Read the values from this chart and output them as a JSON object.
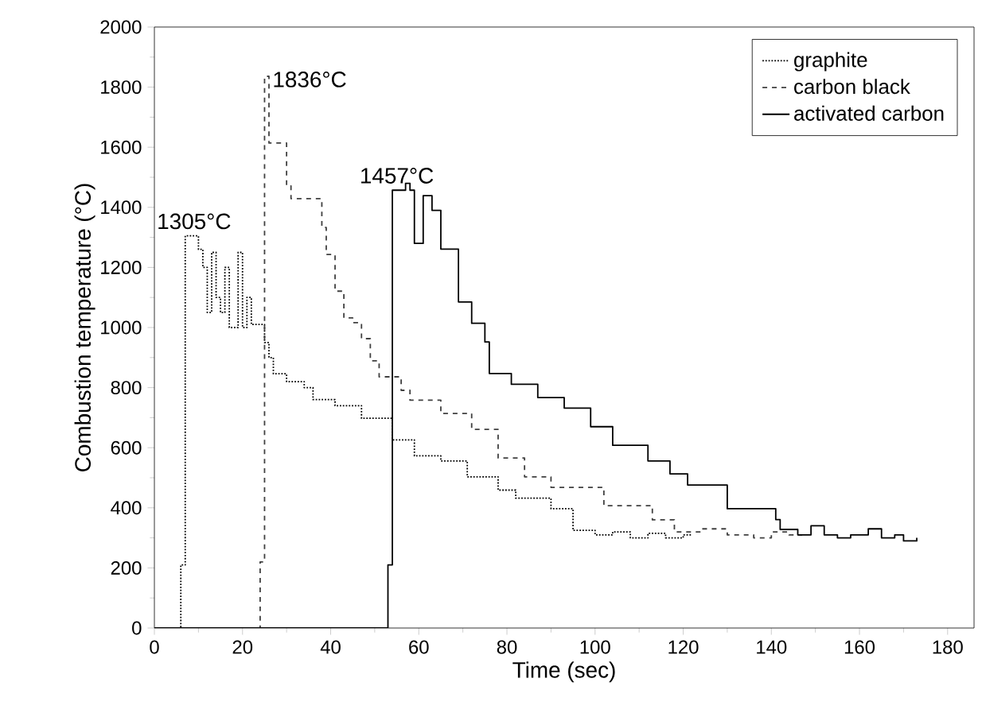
{
  "chart_data": {
    "type": "step",
    "xlabel": "Time (sec)",
    "ylabel": "Combustion temperature (°C)",
    "xlim": [
      0,
      186
    ],
    "xticks": [
      0,
      20,
      40,
      60,
      80,
      100,
      120,
      140,
      160,
      180
    ],
    "ylim": [
      0,
      2000
    ],
    "yticks": [
      0,
      200,
      400,
      600,
      800,
      1000,
      1200,
      1400,
      1600,
      1800,
      2000
    ],
    "grid": false,
    "legend": "top right",
    "marker": "none",
    "annotations": [
      {
        "text": "1305°C",
        "x": 9,
        "y": 1305
      },
      {
        "text": "1836°C",
        "x": 26,
        "y": 1836
      },
      {
        "text": "1457°C",
        "x": 55,
        "y": 1457
      }
    ],
    "series": [
      {
        "name": "graphite",
        "color": "#000000",
        "line_style": "dotted",
        "x": [
          5.5,
          6,
          7,
          10,
          11,
          12,
          13,
          14,
          15,
          16,
          17,
          19,
          20,
          21,
          22,
          25,
          26,
          27,
          30,
          34,
          36,
          41,
          47,
          54,
          59,
          65,
          71,
          78,
          82,
          90,
          95,
          100,
          104,
          108,
          112,
          116,
          120,
          122
        ],
        "values": [
          0,
          210,
          1305,
          1260,
          1200,
          1050,
          1250,
          1100,
          1050,
          1200,
          1000,
          1250,
          1000,
          1100,
          1010,
          950,
          900,
          846,
          820,
          800,
          760,
          740,
          698,
          626,
          573,
          556,
          503,
          459,
          432,
          397,
          325,
          310,
          320,
          300,
          315,
          300,
          310,
          310
        ]
      },
      {
        "name": "carbon black",
        "color": "#404040",
        "line_style": "dashed",
        "x": [
          23.5,
          24,
          25,
          26,
          29,
          30,
          31,
          34,
          38,
          39,
          41,
          43,
          45,
          47,
          49,
          51,
          56,
          58,
          65,
          72,
          78,
          84,
          90,
          102,
          113,
          118,
          124,
          130,
          136,
          140,
          144,
          147
        ],
        "values": [
          0,
          220,
          1836,
          1614,
          1614,
          1471,
          1429,
          1429,
          1333,
          1243,
          1121,
          1032,
          1016,
          963,
          889,
          836,
          791,
          758,
          714,
          661,
          566,
          503,
          468,
          407,
          360,
          320,
          330,
          310,
          300,
          320,
          310,
          310
        ]
      },
      {
        "name": "activated carbon",
        "color": "#000000",
        "line_style": "solid",
        "x": [
          0,
          53,
          54,
          57,
          58,
          59,
          61,
          63,
          65,
          69,
          72,
          75,
          76,
          81,
          87,
          93,
          99,
          104,
          112,
          117,
          121,
          130,
          141,
          142,
          146,
          149,
          152,
          155,
          158,
          162,
          165,
          168,
          170,
          173
        ],
        "values": [
          0,
          210,
          1457,
          1480,
          1457,
          1280,
          1439,
          1390,
          1261,
          1085,
          1014,
          952,
          847,
          811,
          767,
          732,
          670,
          608,
          556,
          513,
          476,
          397,
          361,
          328,
          310,
          340,
          310,
          300,
          310,
          330,
          300,
          310,
          290,
          300
        ]
      }
    ]
  }
}
